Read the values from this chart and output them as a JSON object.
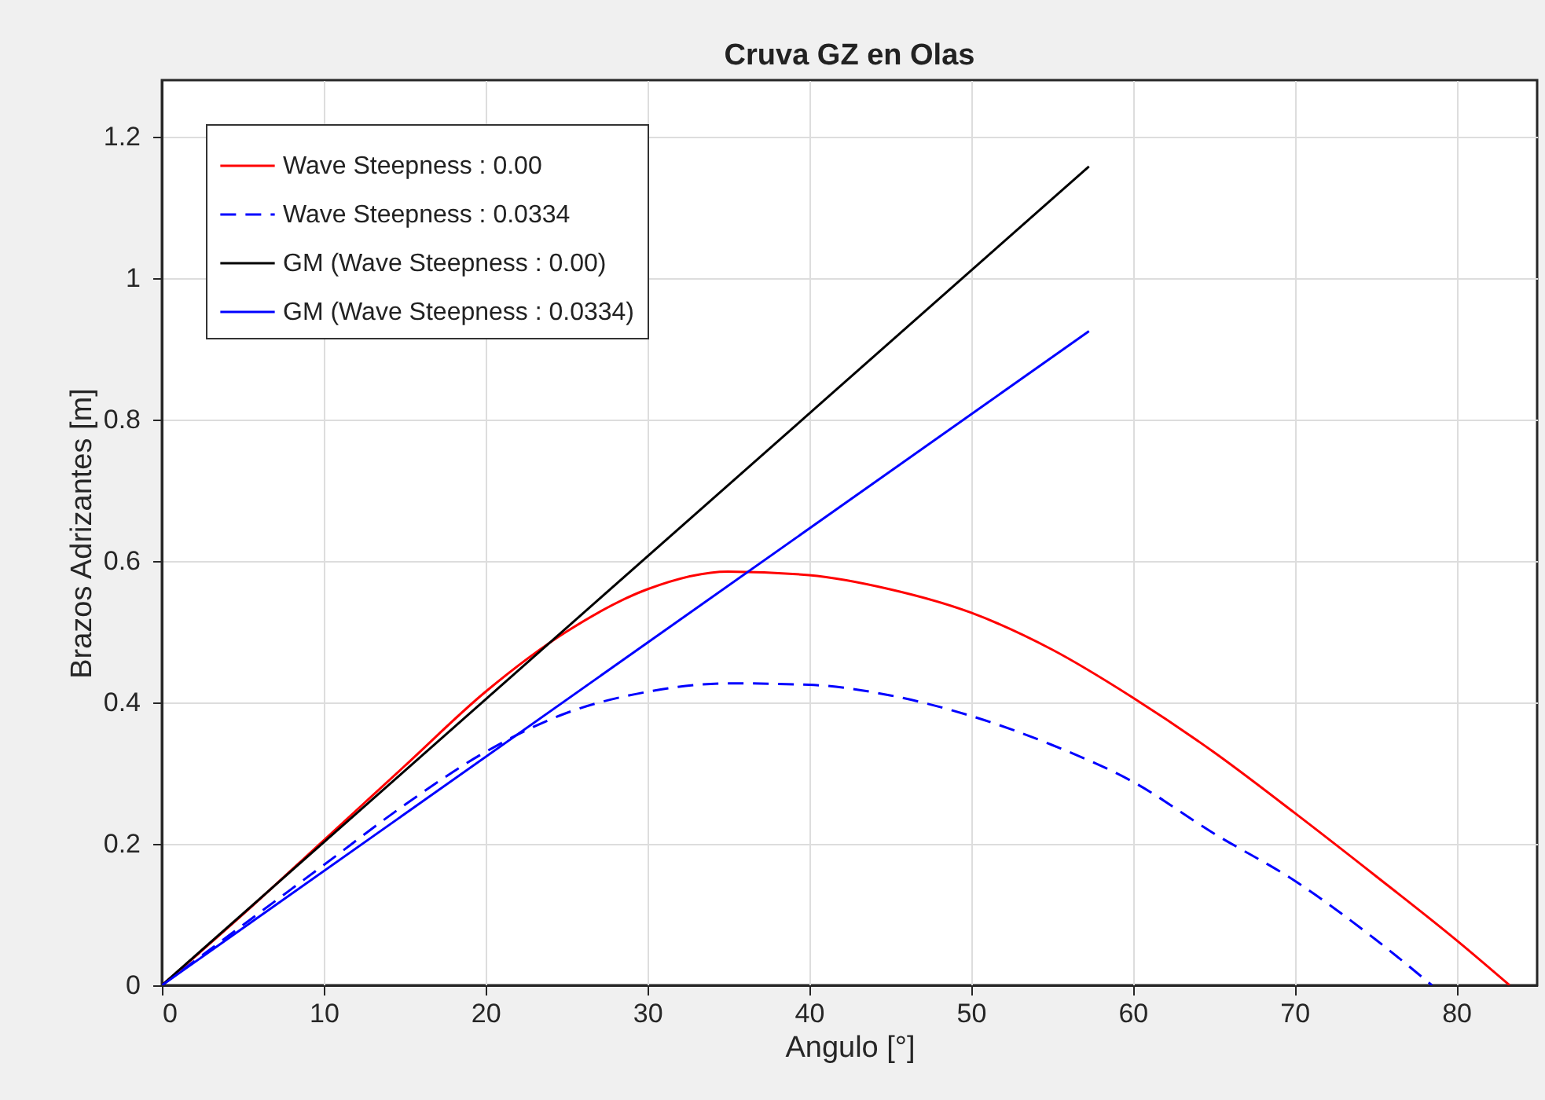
{
  "chart_data": {
    "type": "line",
    "title": "Cruva GZ en Olas",
    "xlabel": "Angulo [°]",
    "ylabel": "Brazos Adrizantes [m]",
    "xlim": [
      0,
      85
    ],
    "xticks": [
      0,
      10,
      20,
      30,
      40,
      50,
      60,
      70,
      80
    ],
    "ylim": [
      0,
      1.28
    ],
    "yticks": [
      0,
      0.2,
      0.4,
      0.6,
      0.8,
      1,
      1.2
    ],
    "grid": true,
    "legend": "top left",
    "marker": "none",
    "series": [
      {
        "name": "Wave Steepness : 0.00",
        "color": "#ff0000",
        "line_style": "solid",
        "x": [
          0,
          5,
          10,
          15,
          20,
          25,
          30,
          35,
          40,
          45,
          50,
          55,
          60,
          65,
          70,
          75,
          80,
          83.3
        ],
        "values": [
          0,
          0.1,
          0.205,
          0.31,
          0.415,
          0.5,
          0.56,
          0.585,
          0.58,
          0.56,
          0.527,
          0.475,
          0.407,
          0.33,
          0.244,
          0.155,
          0.064,
          0
        ]
      },
      {
        "name": "Wave Steepness : 0.0334",
        "color": "#0000ff",
        "line_style": "dashed",
        "x": [
          0,
          5,
          10,
          15,
          20,
          25,
          30,
          35,
          40,
          45,
          50,
          55,
          60,
          65,
          70,
          75,
          78.5
        ],
        "values": [
          0,
          0.085,
          0.17,
          0.255,
          0.33,
          0.385,
          0.415,
          0.427,
          0.425,
          0.41,
          0.381,
          0.34,
          0.288,
          0.215,
          0.148,
          0.065,
          0
        ]
      },
      {
        "name": "GM (Wave Steepness : 0.00)",
        "color": "#000000",
        "line_style": "solid",
        "x": [
          0,
          57.3
        ],
        "values": [
          0,
          1.158
        ]
      },
      {
        "name": "GM (Wave Steepness : 0.0334)",
        "color": "#0000ff",
        "line_style": "solid",
        "x": [
          0,
          57.3
        ],
        "values": [
          0,
          0.925
        ]
      }
    ]
  }
}
